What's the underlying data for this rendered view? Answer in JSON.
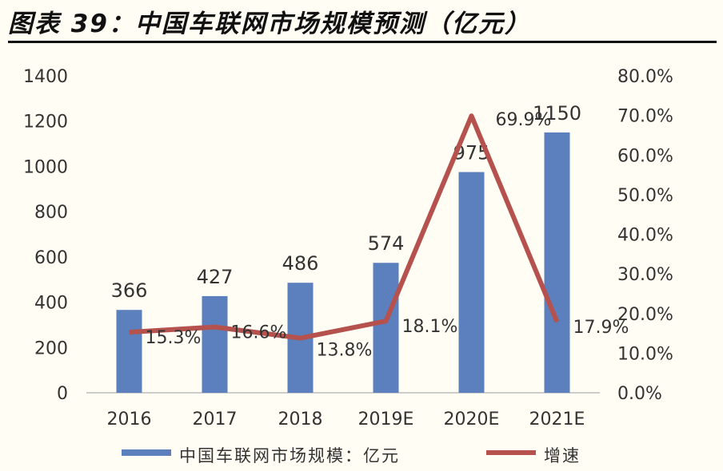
{
  "title": "图表 39：中国车联网市场规模预测（亿元）",
  "chart_data": {
    "type": "bar+line",
    "title": "图表 39：中国车联网市场规模预测（亿元）",
    "categories": [
      "2016",
      "2017",
      "2018",
      "2019E",
      "2020E",
      "2021E"
    ],
    "series": [
      {
        "name": "中国车联网市场规模：亿元",
        "type": "bar",
        "axis": "left",
        "values": [
          366,
          427,
          486,
          574,
          975,
          1150
        ],
        "labels": [
          "366",
          "427",
          "486",
          "574",
          "975",
          "1150"
        ],
        "color": "#5b80bd"
      },
      {
        "name": "增速",
        "type": "line",
        "axis": "right",
        "values": [
          15.3,
          16.6,
          13.8,
          18.1,
          69.9,
          17.9
        ],
        "labels": [
          "15.3%",
          "16.6%",
          "13.8%",
          "18.1%",
          "69.9%",
          "17.9%"
        ],
        "color": "#b5524e"
      }
    ],
    "left_axis": {
      "ylim": [
        0,
        1400
      ],
      "ticks": [
        "0",
        "200",
        "400",
        "600",
        "800",
        "1000",
        "1200",
        "1400"
      ]
    },
    "right_axis": {
      "ylim": [
        0,
        80
      ],
      "ticks": [
        "0.0%",
        "10.0%",
        "20.0%",
        "30.0%",
        "40.0%",
        "50.0%",
        "60.0%",
        "70.0%",
        "80.0%"
      ]
    },
    "grid": false,
    "legend": "bottom"
  }
}
